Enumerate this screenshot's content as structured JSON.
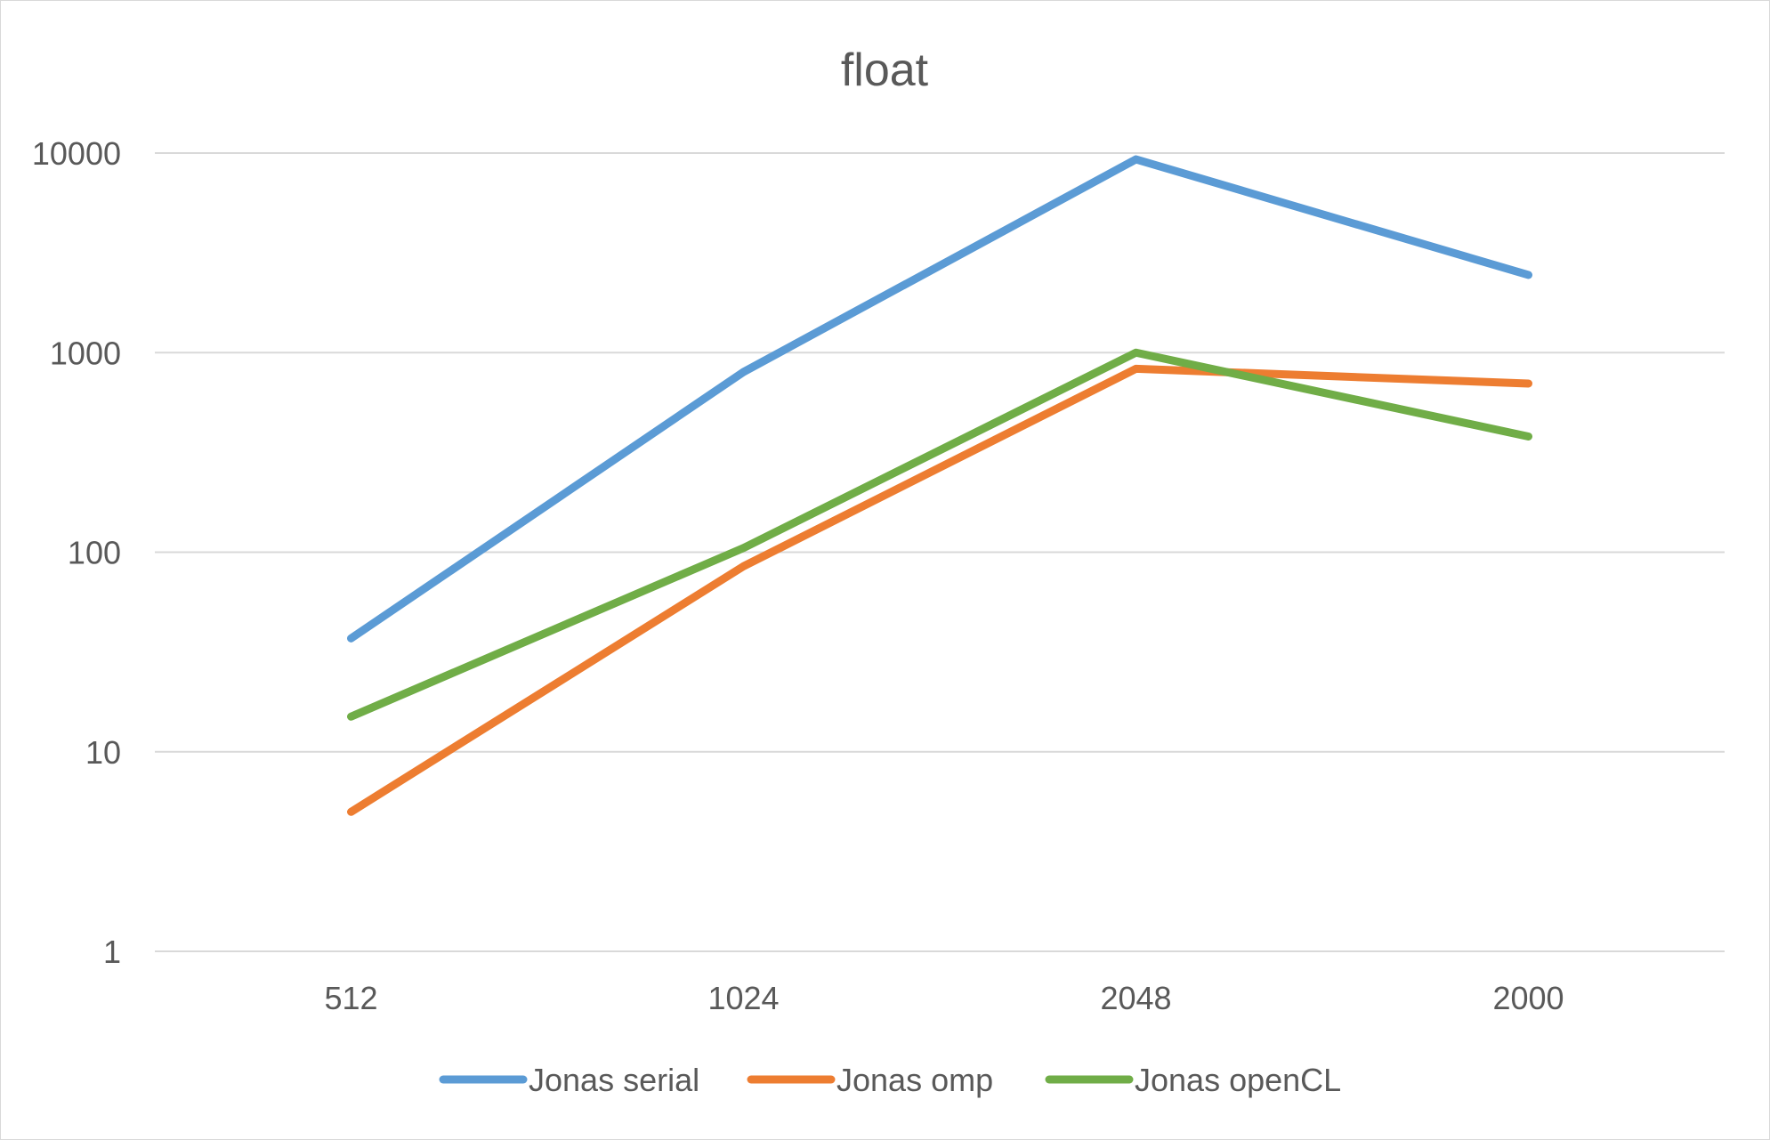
{
  "chart_data": {
    "type": "line",
    "title": "float",
    "xlabel": "",
    "ylabel": "",
    "yscale": "log",
    "ylim": [
      1,
      10000
    ],
    "yticks": [
      "1",
      "10",
      "100",
      "1000",
      "10000"
    ],
    "categories": [
      "512",
      "1024",
      "2048",
      "2000"
    ],
    "grid": true,
    "legend": "bottom",
    "series": [
      {
        "name": "Jonas serial",
        "color": "#5b9bd5",
        "values": [
          37,
          800,
          9300,
          2450
        ]
      },
      {
        "name": "Jonas omp",
        "color": "#ed7d31",
        "values": [
          5,
          85,
          830,
          700
        ]
      },
      {
        "name": "Jonas openCL",
        "color": "#70ad47",
        "values": [
          15,
          105,
          1000,
          380
        ]
      }
    ]
  }
}
